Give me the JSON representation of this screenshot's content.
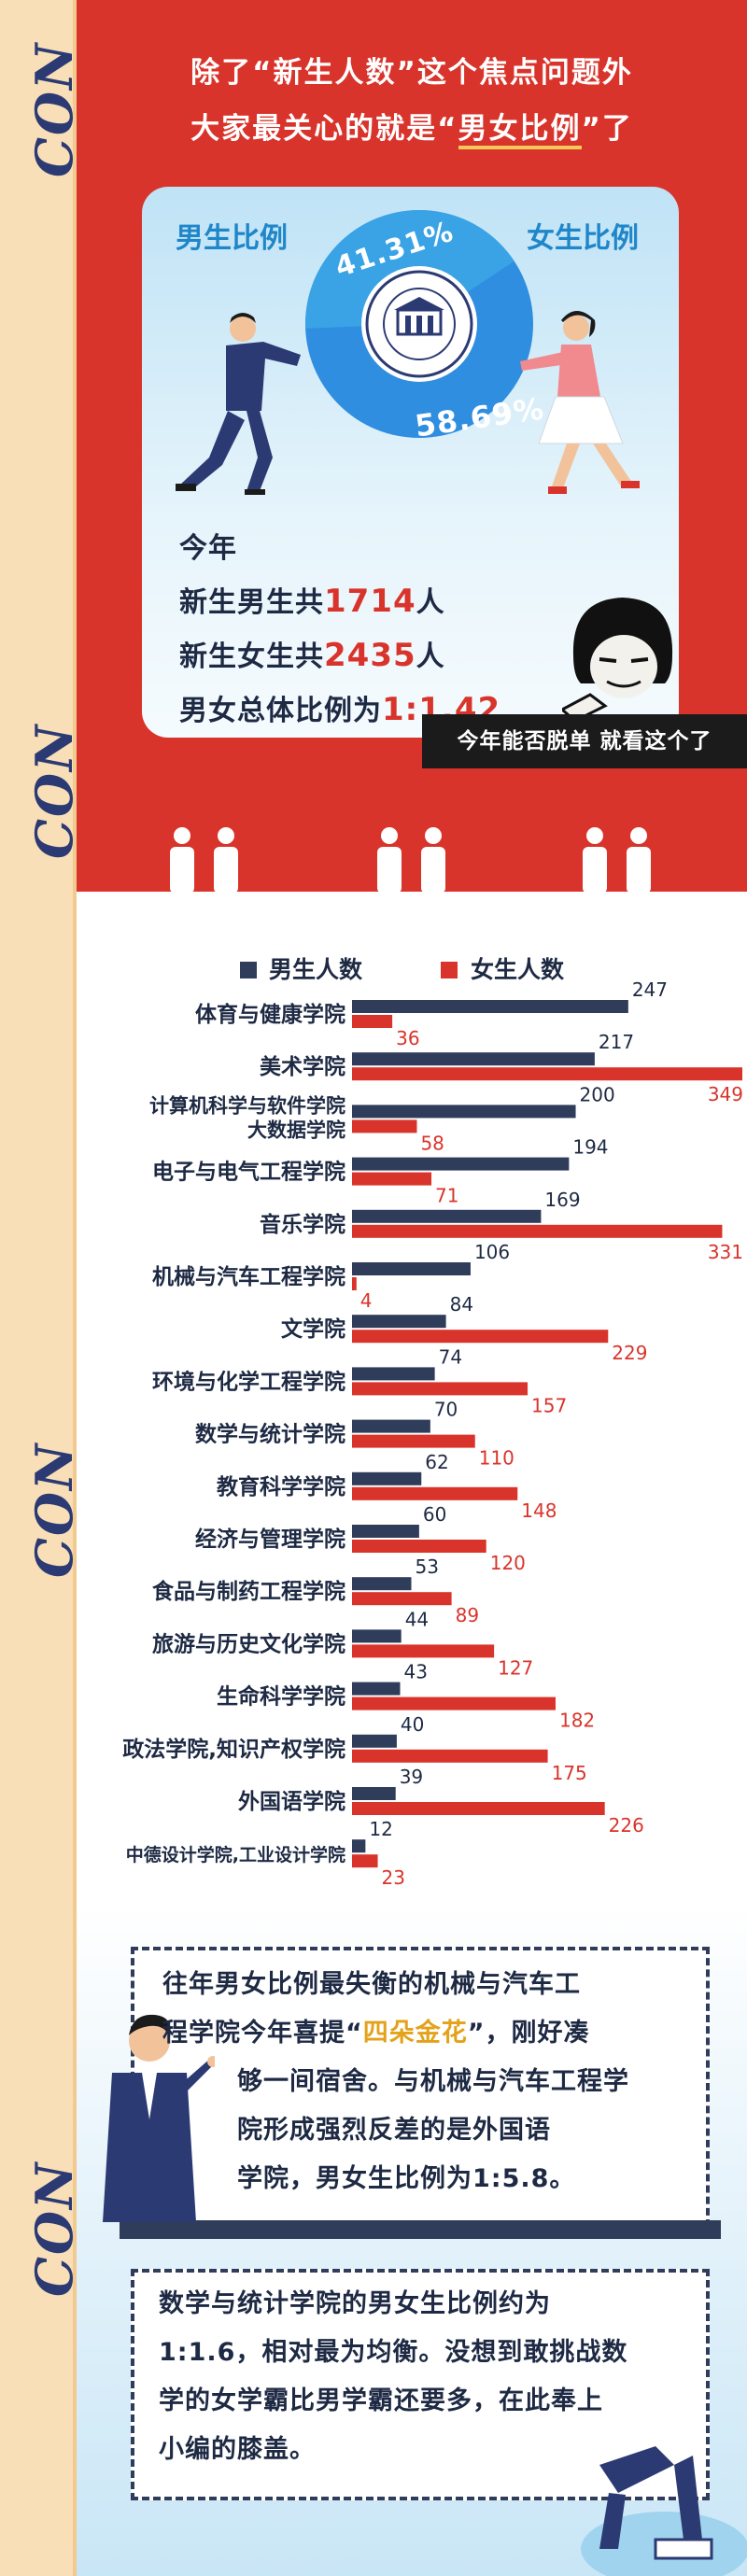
{
  "strip": {
    "logo_text": "CON"
  },
  "headline": {
    "line1": "除了“新生人数”这个焦点问题外",
    "line2_prefix": "大家最关心的就是“",
    "line2_em": "男女比例",
    "line2_suffix": "”了"
  },
  "ratio_card": {
    "male_label": "男生比例",
    "female_label": "女生比例",
    "male_pct": "41.31%",
    "female_pct": "58.69%",
    "male_fraction": 0.4131,
    "female_fraction": 0.5869,
    "colors": {
      "male": "#1f86c9",
      "female": "#2f8ee0",
      "navy": "#2c3a73",
      "red": "#d9342b"
    },
    "seal_icon": "university-seal-icon"
  },
  "stats": {
    "line1": "今年",
    "male_prefix": "新生男生共",
    "male_count": "1714",
    "male_suffix": "人",
    "female_prefix": "新生女生共",
    "female_count": "2435",
    "female_suffix": "人",
    "ratio_prefix": "男女总体比例为",
    "ratio_value": "1:1.42"
  },
  "caption": "今年能否脱单  就看这个了",
  "chart_data": {
    "type": "bar",
    "orientation": "horizontal",
    "legend": {
      "placement": "top",
      "entries": [
        "男生人数",
        "女生人数"
      ]
    },
    "categories": [
      "体育与健康学院",
      "美术学院",
      "计算机科学与软件学院\n大数据学院",
      "电子与电气工程学院",
      "音乐学院",
      "机械与汽车工程学院",
      "文学院",
      "环境与化学工程学院",
      "数学与统计学院",
      "教育科学学院",
      "经济与管理学院",
      "食品与制药工程学院",
      "旅游与历史文化学院",
      "生命科学学院",
      "政法学院,知识产权学院",
      "外国语学院",
      "中德设计学院,工业设计学院"
    ],
    "series": [
      {
        "name": "男生人数",
        "color": "#2f3c5a",
        "values": [
          247,
          217,
          200,
          194,
          169,
          106,
          84,
          74,
          70,
          62,
          60,
          53,
          44,
          43,
          40,
          39,
          12
        ]
      },
      {
        "name": "女生人数",
        "color": "#d9342b",
        "values": [
          36,
          349,
          58,
          71,
          331,
          4,
          229,
          157,
          110,
          148,
          120,
          89,
          127,
          182,
          175,
          226,
          23
        ]
      }
    ],
    "xlim": [
      0,
      349
    ],
    "grid": false
  },
  "box1": {
    "l1": "往年男女比例最失衡的机械与汽车工",
    "l2a": "程学院今年喜提“",
    "l2b": "四朵金花",
    "l2c": "”，刚好凑",
    "l3": "够一间宿舍。与机械与汽车工程学",
    "l4": "院形成强烈反差的是外国语",
    "l5": "学院，男女生比例为1:5.8。"
  },
  "box2": {
    "l1": "数学与统计学院的男女生比例约为",
    "l2": "1:1.6，相对最为均衡。没想到敢挑战数",
    "l3": "学的女学霸比男学霸还要多，在此奉上",
    "l4": "小编的膝盖。"
  }
}
